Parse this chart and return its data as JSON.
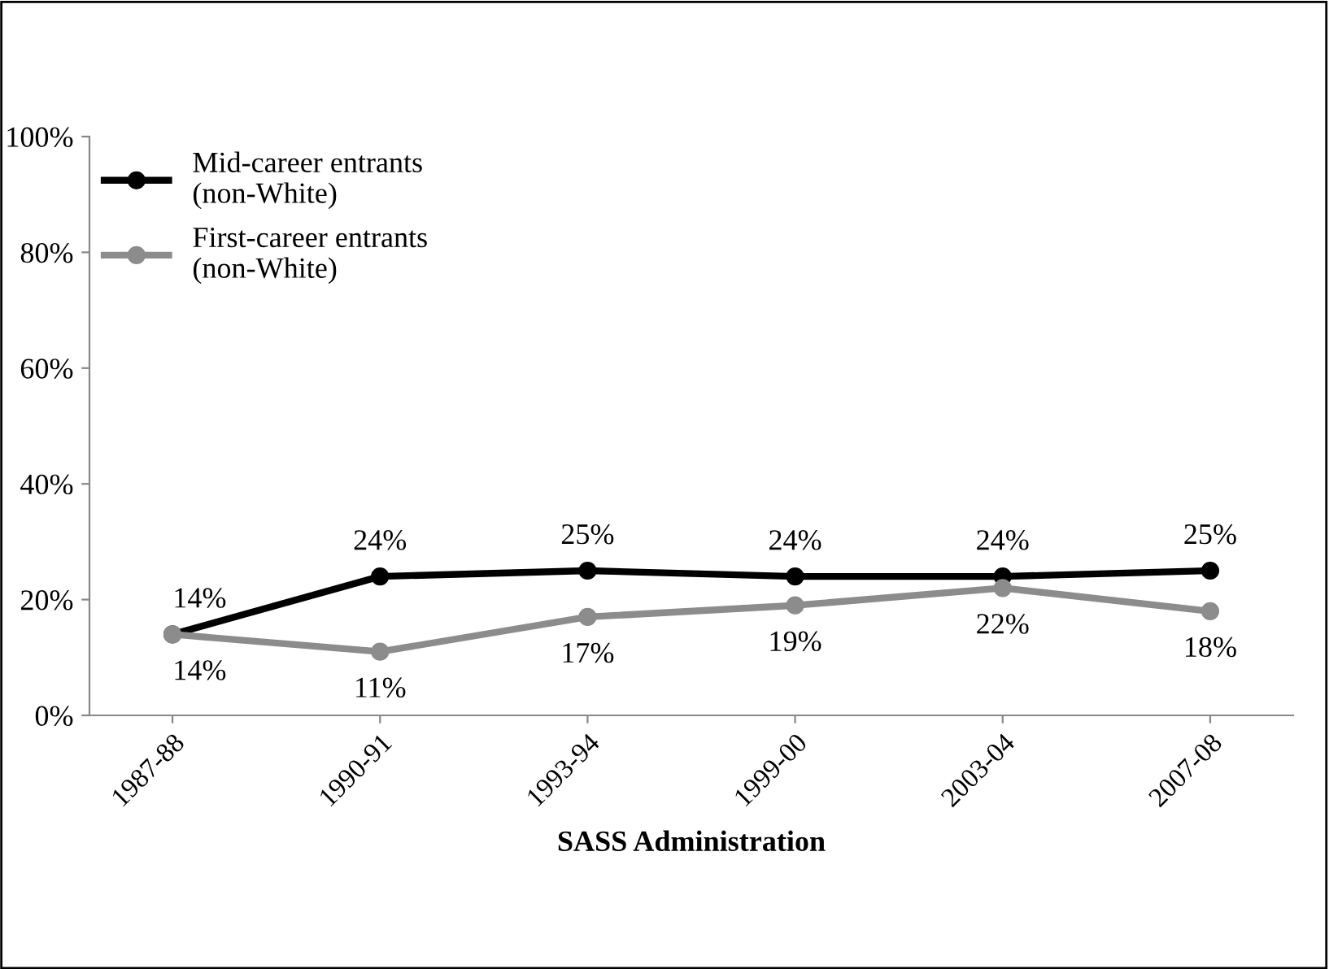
{
  "chart_data": {
    "type": "line",
    "xlabel": "SASS Administration",
    "categories": [
      "1987-88",
      "1990-91",
      "1993-94",
      "1999-00",
      "2003-04",
      "2007-08"
    ],
    "series": [
      {
        "name": "Mid-career entrants\n(non-White)",
        "color": "#000000",
        "values": [
          14,
          24,
          25,
          24,
          24,
          25
        ],
        "value_labels": [
          "14%",
          "24%",
          "25%",
          "24%",
          "24%",
          "25%"
        ]
      },
      {
        "name": "First-career entrants\n(non-White)",
        "color": "#8c8c8c",
        "values": [
          14,
          11,
          17,
          19,
          22,
          18
        ],
        "value_labels": [
          "14%",
          "11%",
          "17%",
          "19%",
          "22%",
          "18%"
        ]
      }
    ],
    "ylim": [
      0,
      100
    ],
    "yticks": [
      {
        "value": 0,
        "label": "0%"
      },
      {
        "value": 20,
        "label": "20%"
      },
      {
        "value": 40,
        "label": "40%"
      },
      {
        "value": 60,
        "label": "60%"
      },
      {
        "value": 80,
        "label": "80%"
      },
      {
        "value": 100,
        "label": "100%"
      }
    ],
    "grid": false,
    "legend": "top left",
    "marker": "circle",
    "line_style": "solid"
  }
}
